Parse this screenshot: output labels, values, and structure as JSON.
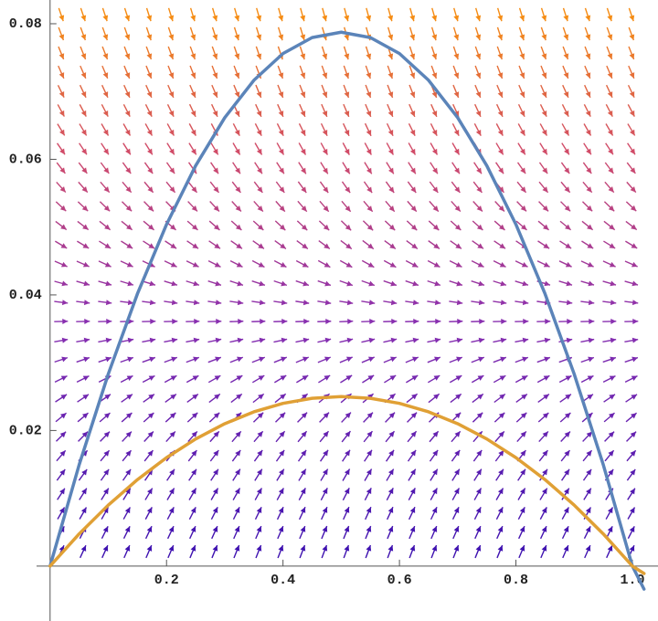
{
  "chart_data": {
    "type": "line",
    "x": [
      0,
      0.05,
      0.1,
      0.15,
      0.2,
      0.25,
      0.3,
      0.35,
      0.4,
      0.45,
      0.5,
      0.55,
      0.6,
      0.65,
      0.7,
      0.75,
      0.8,
      0.85,
      0.9,
      0.95,
      1,
      1.02
    ],
    "series": [
      {
        "color": "#5b84b9",
        "values": [
          0,
          0.01496,
          0.02835,
          0.04016,
          0.0504,
          0.05906,
          0.06615,
          0.07166,
          0.0756,
          0.07796,
          0.07875,
          0.07796,
          0.0756,
          0.07166,
          0.06615,
          0.05906,
          0.0504,
          0.04016,
          0.02835,
          0.01496,
          0,
          -0.0034
        ]
      },
      {
        "color": "#e0a035",
        "values": [
          0,
          0.00475,
          0.009,
          0.01275,
          0.016,
          0.01875,
          0.021,
          0.02275,
          0.024,
          0.02475,
          0.025,
          0.02475,
          0.024,
          0.02275,
          0.021,
          0.01875,
          0.016,
          0.01275,
          0.009,
          0.00475,
          0,
          -0.0011
        ]
      }
    ],
    "xlim": [
      -0.086,
      1.044
    ],
    "ylim": [
      -0.0081,
      0.0835
    ],
    "xticks": [
      0.2,
      0.4,
      0.6,
      0.8,
      {
        "value": 1,
        "label": "1.0"
      }
    ],
    "yticks": [
      0.02,
      0.04,
      0.06,
      0.08
    ]
  }
}
